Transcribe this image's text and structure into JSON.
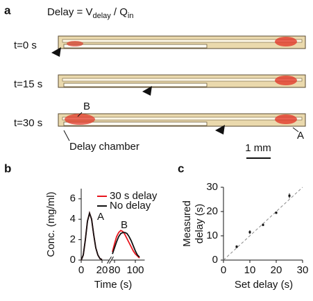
{
  "panel_a": {
    "label": "a",
    "formula": [
      "Delay = V",
      "delay",
      " / Q",
      "in"
    ],
    "times": [
      "t=0 s",
      "t=15 s",
      "t=30 s"
    ],
    "marker_b": "B",
    "marker_a": "A",
    "chamber_label": "Delay chamber",
    "scale_bar": "1 mm"
  },
  "chart_data": [
    {
      "type": "line",
      "panel_label": "b",
      "xlabel": "Time (s)",
      "ylabel": "Conc. (mg/ml)",
      "x": [
        0,
        2,
        4,
        6,
        8,
        10,
        12,
        14,
        16,
        18,
        20,
        78,
        80,
        82,
        84,
        86,
        88,
        90,
        92,
        94,
        96,
        98,
        100,
        102,
        104
      ],
      "series": [
        {
          "name": "30 s delay",
          "color": "#e8141c",
          "values": [
            0,
            0.5,
            2,
            3.8,
            4.6,
            4.0,
            2.5,
            1.2,
            0.5,
            0.15,
            0.05,
            0.8,
            1.6,
            2.3,
            2.7,
            2.9,
            2.8,
            2.5,
            2.1,
            1.7,
            1.3,
            0.9,
            0.6,
            0.4,
            0.2
          ]
        },
        {
          "name": "No delay",
          "color": "#111111",
          "values": [
            0,
            0.5,
            2,
            3.8,
            4.6,
            4.0,
            2.5,
            1.2,
            0.5,
            0.15,
            0.05,
            0.6,
            1.2,
            1.8,
            2.3,
            2.6,
            2.7,
            2.7,
            2.6,
            2.3,
            1.9,
            1.4,
            0.9,
            0.5,
            0.3
          ]
        }
      ],
      "x_segments": [
        [
          0,
          27
        ],
        [
          77,
          109
        ]
      ],
      "xticks": [
        0,
        20,
        80,
        100
      ],
      "ylim": [
        0,
        7
      ],
      "yticks": [
        0,
        2,
        4,
        6
      ],
      "annotations": [
        "A",
        "B"
      ]
    },
    {
      "type": "scatter",
      "panel_label": "c",
      "xlabel": "Set delay (s)",
      "ylabel_lines": [
        "Measured",
        "delay (s)"
      ],
      "x": [
        5,
        10,
        15,
        20,
        25
      ],
      "values": [
        5.5,
        11.5,
        14.5,
        19.5,
        26.5
      ],
      "errors": [
        0.6,
        0.8,
        0.5,
        0.5,
        1.0
      ],
      "color": "#111111",
      "identity_line": true,
      "xlim": [
        0,
        30
      ],
      "ylim": [
        0,
        30
      ],
      "xticks": [
        0,
        10,
        20,
        30
      ],
      "yticks": [
        0,
        10,
        20,
        30
      ]
    }
  ]
}
